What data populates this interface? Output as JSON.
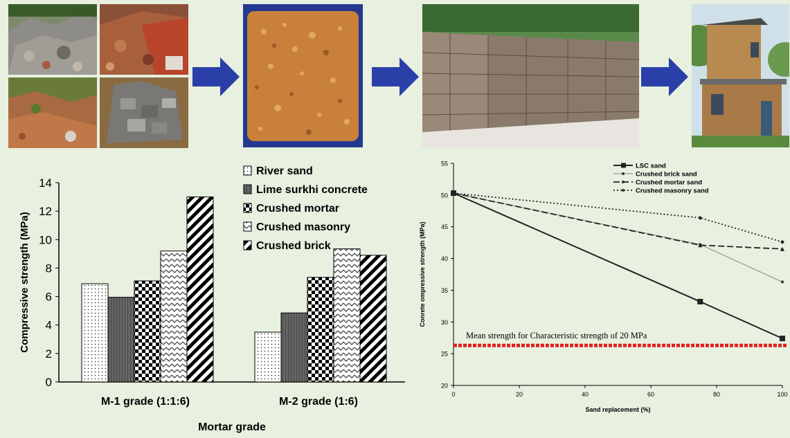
{
  "photos": [
    {
      "name": "demolition-waste-heap-grey",
      "kind": "rubble-grey"
    },
    {
      "name": "demolition-waste-heap-brick",
      "kind": "rubble-red"
    },
    {
      "name": "demolition-waste-heap-soil",
      "kind": "rubble-soil"
    },
    {
      "name": "demolition-waste-heap-blocks",
      "kind": "rubble-blocks"
    },
    {
      "name": "crushed-aggregate-sample",
      "kind": "aggregate"
    },
    {
      "name": "stacked-blocks-photo",
      "kind": "blocks"
    },
    {
      "name": "two-storey-building-photo",
      "kind": "building"
    }
  ],
  "colors": {
    "arrow": "#2b3fa8",
    "threshold_line": "#e02020",
    "aggregate_bg": "#24388f",
    "aggregate_fill": "#c8803a"
  },
  "chart_data": [
    {
      "type": "bar",
      "title": "",
      "xlabel": "Mortar grade",
      "ylabel": "Compressive strength (MPa)",
      "ylim": [
        0,
        14
      ],
      "yticks": [
        0,
        2,
        4,
        6,
        8,
        10,
        12,
        14
      ],
      "grid": false,
      "legend_position": "top-right",
      "categories": [
        "M-1 grade (1:1:6)",
        "M-2 grade (1:6)"
      ],
      "series": [
        {
          "name": "River sand",
          "pattern": "dots",
          "values": [
            6.9,
            3.5
          ]
        },
        {
          "name": "Lime surkhi concrete",
          "pattern": "dark-grey",
          "values": [
            5.95,
            4.85
          ]
        },
        {
          "name": "Crushed mortar",
          "pattern": "checker",
          "values": [
            7.1,
            7.35
          ]
        },
        {
          "name": "Crushed masonry",
          "pattern": "zigzag",
          "values": [
            9.2,
            9.35
          ]
        },
        {
          "name": "Crushed brick",
          "pattern": "diagonal",
          "values": [
            13.0,
            8.9
          ]
        }
      ]
    },
    {
      "type": "line",
      "title": "",
      "xlabel": "Sand replacement (%)",
      "ylabel": "Conrete ompressive strength (MPa)",
      "xlim": [
        0,
        100
      ],
      "ylim": [
        20,
        55
      ],
      "xticks": [
        0,
        20,
        40,
        60,
        80,
        100
      ],
      "yticks": [
        20,
        25,
        30,
        35,
        40,
        45,
        50,
        55
      ],
      "grid": false,
      "legend_position": "top-right",
      "series": [
        {
          "name": "LSC sand",
          "style": "solid-square",
          "x": [
            0,
            75,
            100
          ],
          "y": [
            50.3,
            33.2,
            27.4
          ]
        },
        {
          "name": "Crushed brick sand",
          "style": "thin-circle",
          "x": [
            0,
            75,
            100
          ],
          "y": [
            50.3,
            42.2,
            36.3
          ]
        },
        {
          "name": "Crushed mortar sand",
          "style": "dashed-triangle",
          "x": [
            0,
            75,
            100
          ],
          "y": [
            50.3,
            42.1,
            41.5
          ]
        },
        {
          "name": "Crushed masonry sand",
          "style": "dotted-diamond",
          "x": [
            0,
            75,
            100
          ],
          "y": [
            50.3,
            46.4,
            42.6
          ]
        }
      ],
      "annotations": [
        {
          "text": "Mean strength for Characteristic strength of 20 MPa",
          "y": 26.3,
          "style": "dotted-threshold"
        }
      ]
    }
  ]
}
